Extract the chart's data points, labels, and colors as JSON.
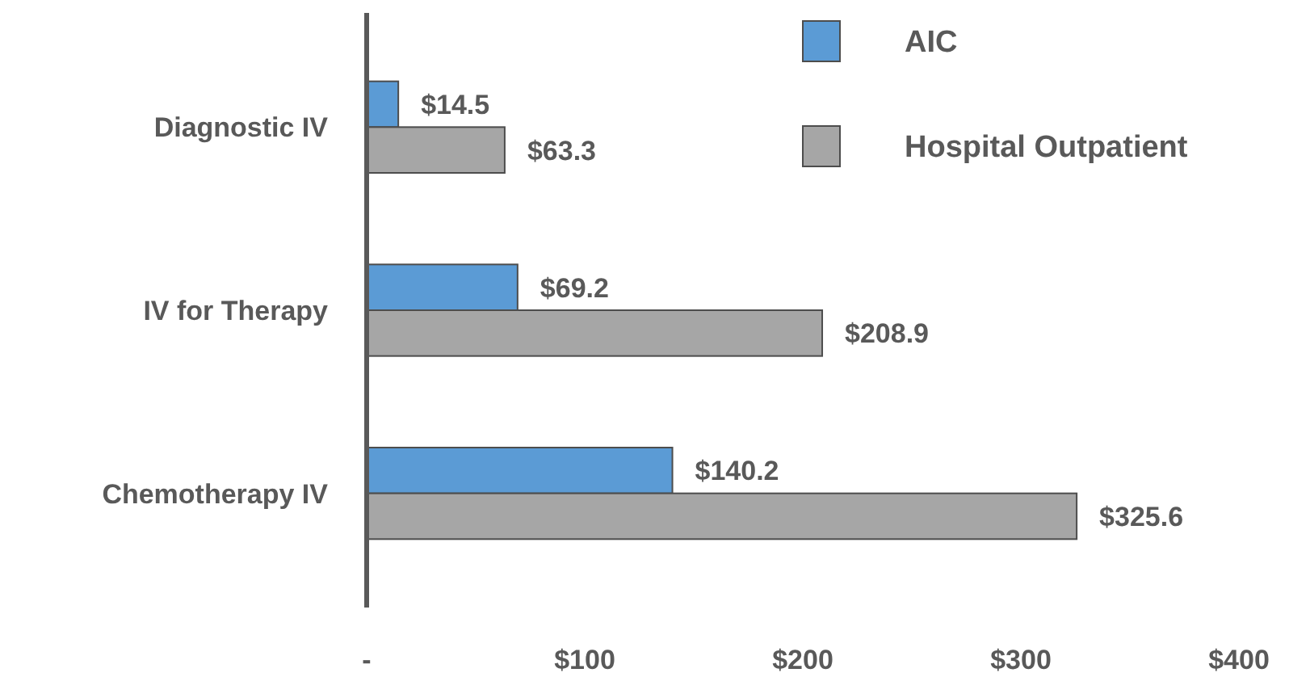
{
  "chart_data": {
    "type": "bar",
    "orientation": "horizontal",
    "categories": [
      "Diagnostic IV",
      "IV for Therapy",
      "Chemotherapy IV"
    ],
    "series": [
      {
        "name": "AIC",
        "color": "#5b9bd5",
        "values": [
          14.5,
          69.2,
          140.2
        ],
        "value_labels": [
          "$14.5",
          "$69.2",
          "$140.2"
        ]
      },
      {
        "name": "Hospital Outpatient",
        "color": "#a6a6a6",
        "values": [
          63.3,
          208.9,
          325.6
        ],
        "value_labels": [
          "$63.3",
          "$208.9",
          "$325.6"
        ]
      }
    ],
    "xlim": [
      0,
      400
    ],
    "xticks": [
      {
        "value": 0,
        "label": "-"
      },
      {
        "value": 100,
        "label": "$100"
      },
      {
        "value": 200,
        "label": "$200"
      },
      {
        "value": 300,
        "label": "$300"
      },
      {
        "value": 400,
        "label": "$400"
      }
    ],
    "legend": "top right"
  }
}
